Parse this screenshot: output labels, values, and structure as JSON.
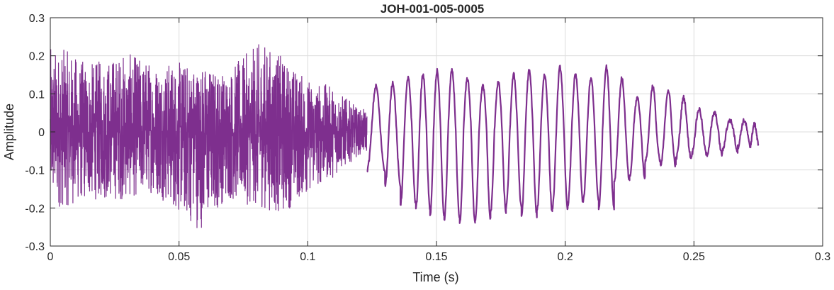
{
  "chart_data": {
    "type": "line",
    "title": "JOH-001-005-0005",
    "xlabel": "Time (s)",
    "ylabel": "Amplitude",
    "xlim": [
      0,
      0.3
    ],
    "ylim": [
      -0.3,
      0.3
    ],
    "xticks": [
      0,
      0.05,
      0.1,
      0.15,
      0.2,
      0.25,
      0.3
    ],
    "xtick_labels": [
      "0",
      "0.05",
      "0.1",
      "0.15",
      "0.2",
      "0.25",
      "0.3"
    ],
    "yticks": [
      -0.3,
      -0.2,
      -0.1,
      0,
      0.1,
      0.2,
      0.3
    ],
    "ytick_labels": [
      "-0.3",
      "-0.2",
      "-0.1",
      "0",
      "0.1",
      "0.2",
      "0.3"
    ],
    "grid": true,
    "colors": {
      "line": "#7E2F8E",
      "grid": "#DCDCDC",
      "axis": "#262626"
    },
    "series": [
      {
        "x_start": 0,
        "x_end": 0.275,
        "envelope_peaks": [
          {
            "x": 0.005,
            "max": 0.22,
            "min": -0.2
          },
          {
            "x": 0.015,
            "max": 0.18,
            "min": -0.18
          },
          {
            "x": 0.028,
            "max": 0.21,
            "min": -0.18
          },
          {
            "x": 0.04,
            "max": 0.19,
            "min": -0.16
          },
          {
            "x": 0.058,
            "max": 0.18,
            "min": -0.26
          },
          {
            "x": 0.068,
            "max": 0.16,
            "min": -0.18
          },
          {
            "x": 0.082,
            "max": 0.24,
            "min": -0.2
          },
          {
            "x": 0.09,
            "max": 0.2,
            "min": -0.22
          },
          {
            "x": 0.1,
            "max": 0.14,
            "min": -0.16
          },
          {
            "x": 0.11,
            "max": 0.12,
            "min": -0.12
          },
          {
            "x": 0.12,
            "max": 0.06,
            "min": -0.06
          }
        ],
        "oscillation_peaks": [
          {
            "x": 0.127,
            "max": 0.12,
            "min": -0.1
          },
          {
            "x": 0.133,
            "max": 0.13,
            "min": -0.14
          },
          {
            "x": 0.139,
            "max": 0.14,
            "min": -0.19
          },
          {
            "x": 0.145,
            "max": 0.15,
            "min": -0.2
          },
          {
            "x": 0.15,
            "max": 0.16,
            "min": -0.22
          },
          {
            "x": 0.156,
            "max": 0.16,
            "min": -0.23
          },
          {
            "x": 0.162,
            "max": 0.14,
            "min": -0.24
          },
          {
            "x": 0.168,
            "max": 0.12,
            "min": -0.23
          },
          {
            "x": 0.174,
            "max": 0.13,
            "min": -0.21
          },
          {
            "x": 0.18,
            "max": 0.15,
            "min": -0.2
          },
          {
            "x": 0.186,
            "max": 0.16,
            "min": -0.22
          },
          {
            "x": 0.192,
            "max": 0.15,
            "min": -0.21
          },
          {
            "x": 0.198,
            "max": 0.17,
            "min": -0.2
          },
          {
            "x": 0.204,
            "max": 0.15,
            "min": -0.19
          },
          {
            "x": 0.21,
            "max": 0.14,
            "min": -0.18
          },
          {
            "x": 0.216,
            "max": 0.17,
            "min": -0.2
          },
          {
            "x": 0.222,
            "max": 0.14,
            "min": -0.13
          },
          {
            "x": 0.228,
            "max": 0.09,
            "min": -0.12
          },
          {
            "x": 0.234,
            "max": 0.12,
            "min": -0.08
          },
          {
            "x": 0.24,
            "max": 0.11,
            "min": -0.09
          },
          {
            "x": 0.246,
            "max": 0.09,
            "min": -0.07
          },
          {
            "x": 0.252,
            "max": 0.06,
            "min": -0.06
          },
          {
            "x": 0.258,
            "max": 0.05,
            "min": -0.06
          },
          {
            "x": 0.264,
            "max": 0.03,
            "min": -0.05
          },
          {
            "x": 0.27,
            "max": 0.03,
            "min": -0.04
          },
          {
            "x": 0.274,
            "max": 0.02,
            "min": -0.03
          }
        ]
      }
    ]
  }
}
